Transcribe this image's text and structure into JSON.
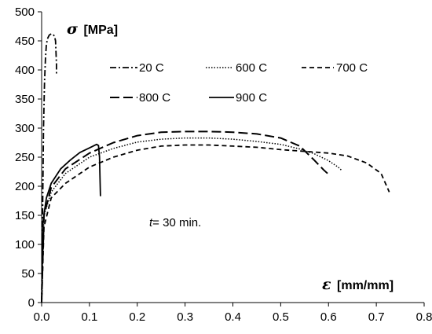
{
  "chart_data": {
    "type": "line",
    "xlabel_symbol": "ε",
    "xlabel_unit": "[mm/mm]",
    "ylabel_symbol": "σ",
    "ylabel_unit": "[MPa]",
    "xlim": [
      0,
      0.8
    ],
    "ylim": [
      0,
      500
    ],
    "xticks": [
      0,
      0.1,
      0.2,
      0.3,
      0.4,
      0.5,
      0.6,
      0.7,
      0.8
    ],
    "xtick_labels": [
      "0.0",
      "0.1",
      "0.2",
      "0.3",
      "0.4",
      "0.5",
      "0.6",
      "0.7",
      "0.8"
    ],
    "yticks": [
      0,
      50,
      100,
      150,
      200,
      250,
      300,
      350,
      400,
      450,
      500
    ],
    "ytick_labels": [
      "0",
      "50",
      "100",
      "150",
      "200",
      "250",
      "300",
      "350",
      "400",
      "450",
      "500"
    ],
    "grid": false,
    "annotation": {
      "italic": "t",
      "rest": "= 30 min."
    },
    "series": [
      {
        "name": "20 C",
        "dash": "dashdot",
        "color": "#000000",
        "points": [
          [
            0.0,
            0
          ],
          [
            0.002,
            150
          ],
          [
            0.004,
            300
          ],
          [
            0.006,
            380
          ],
          [
            0.008,
            420
          ],
          [
            0.01,
            445
          ],
          [
            0.013,
            455
          ],
          [
            0.016,
            460
          ],
          [
            0.02,
            462
          ],
          [
            0.024,
            461
          ],
          [
            0.027,
            458
          ],
          [
            0.029,
            450
          ],
          [
            0.03,
            430
          ],
          [
            0.031,
            410
          ],
          [
            0.031,
            392
          ]
        ]
      },
      {
        "name": "600 C",
        "dash": "dotted",
        "color": "#000000",
        "points": [
          [
            0.0,
            0
          ],
          [
            0.005,
            150
          ],
          [
            0.02,
            190
          ],
          [
            0.05,
            222
          ],
          [
            0.1,
            250
          ],
          [
            0.15,
            265
          ],
          [
            0.2,
            276
          ],
          [
            0.25,
            281
          ],
          [
            0.3,
            283
          ],
          [
            0.35,
            283
          ],
          [
            0.4,
            281
          ],
          [
            0.45,
            277
          ],
          [
            0.5,
            272
          ],
          [
            0.54,
            264
          ],
          [
            0.57,
            256
          ],
          [
            0.6,
            244
          ],
          [
            0.62,
            233
          ],
          [
            0.628,
            227
          ]
        ]
      },
      {
        "name": "700 C",
        "dash": "dashed",
        "color": "#000000",
        "points": [
          [
            0.0,
            0
          ],
          [
            0.005,
            130
          ],
          [
            0.02,
            180
          ],
          [
            0.05,
            205
          ],
          [
            0.1,
            233
          ],
          [
            0.15,
            250
          ],
          [
            0.2,
            262
          ],
          [
            0.25,
            269
          ],
          [
            0.3,
            271
          ],
          [
            0.35,
            271
          ],
          [
            0.4,
            269
          ],
          [
            0.45,
            267
          ],
          [
            0.5,
            263
          ],
          [
            0.55,
            260
          ],
          [
            0.6,
            257
          ],
          [
            0.64,
            252
          ],
          [
            0.68,
            240
          ],
          [
            0.71,
            222
          ],
          [
            0.727,
            190
          ]
        ]
      },
      {
        "name": "800 C",
        "dash": "longdash",
        "color": "#000000",
        "points": [
          [
            0.0,
            0
          ],
          [
            0.005,
            150
          ],
          [
            0.02,
            198
          ],
          [
            0.05,
            230
          ],
          [
            0.1,
            257
          ],
          [
            0.15,
            275
          ],
          [
            0.2,
            287
          ],
          [
            0.25,
            293
          ],
          [
            0.3,
            294
          ],
          [
            0.35,
            294
          ],
          [
            0.4,
            293
          ],
          [
            0.45,
            290
          ],
          [
            0.5,
            283
          ],
          [
            0.54,
            269
          ],
          [
            0.57,
            245
          ],
          [
            0.59,
            228
          ],
          [
            0.598,
            222
          ]
        ]
      },
      {
        "name": "900 C",
        "dash": "solid",
        "color": "#000000",
        "points": [
          [
            0.0,
            0
          ],
          [
            0.003,
            140
          ],
          [
            0.01,
            180
          ],
          [
            0.02,
            205
          ],
          [
            0.04,
            230
          ],
          [
            0.06,
            245
          ],
          [
            0.08,
            258
          ],
          [
            0.1,
            266
          ],
          [
            0.11,
            270
          ],
          [
            0.115,
            272
          ],
          [
            0.119,
            270
          ],
          [
            0.121,
            250
          ],
          [
            0.122,
            215
          ],
          [
            0.123,
            183
          ]
        ]
      }
    ]
  }
}
